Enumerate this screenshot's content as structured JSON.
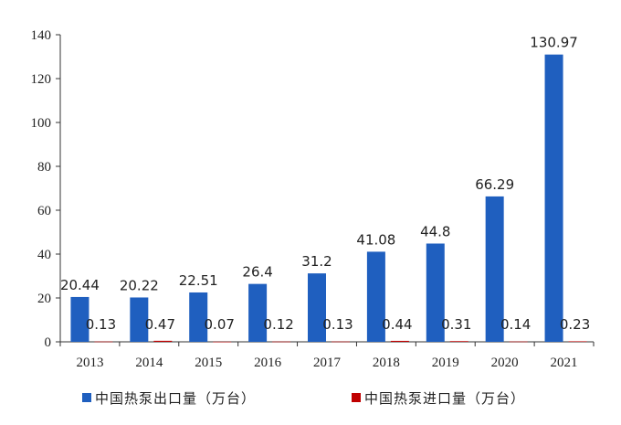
{
  "chart_data": {
    "type": "bar",
    "categories": [
      "2013",
      "2014",
      "2015",
      "2016",
      "2017",
      "2018",
      "2019",
      "2020",
      "2021"
    ],
    "series": [
      {
        "name": "中国热泵出口量（万台）",
        "values": [
          20.44,
          20.22,
          22.51,
          26.4,
          31.2,
          41.08,
          44.8,
          66.29,
          130.97
        ],
        "color": "#1f5fbf"
      },
      {
        "name": "中国热泵进口量（万台）",
        "values": [
          0.13,
          0.47,
          0.07,
          0.12,
          0.13,
          0.44,
          0.31,
          0.14,
          0.23
        ],
        "color": "#c00000"
      }
    ],
    "data_labels": {
      "export": [
        "20.44",
        "20.22",
        "22.51",
        "26.4",
        "31.2",
        "41.08",
        "44.8",
        "66.29",
        "130.97"
      ],
      "import": [
        "0.13",
        "0.47",
        "0.07",
        "0.12",
        "0.13",
        "0.44",
        "0.31",
        "0.14",
        "0.23"
      ]
    },
    "yticks": [
      "0",
      "20",
      "40",
      "60",
      "80",
      "100",
      "120",
      "140"
    ],
    "ylim": [
      0,
      140
    ],
    "title": "",
    "xlabel": "",
    "ylabel": "",
    "grid": false,
    "legend_position": "bottom"
  }
}
